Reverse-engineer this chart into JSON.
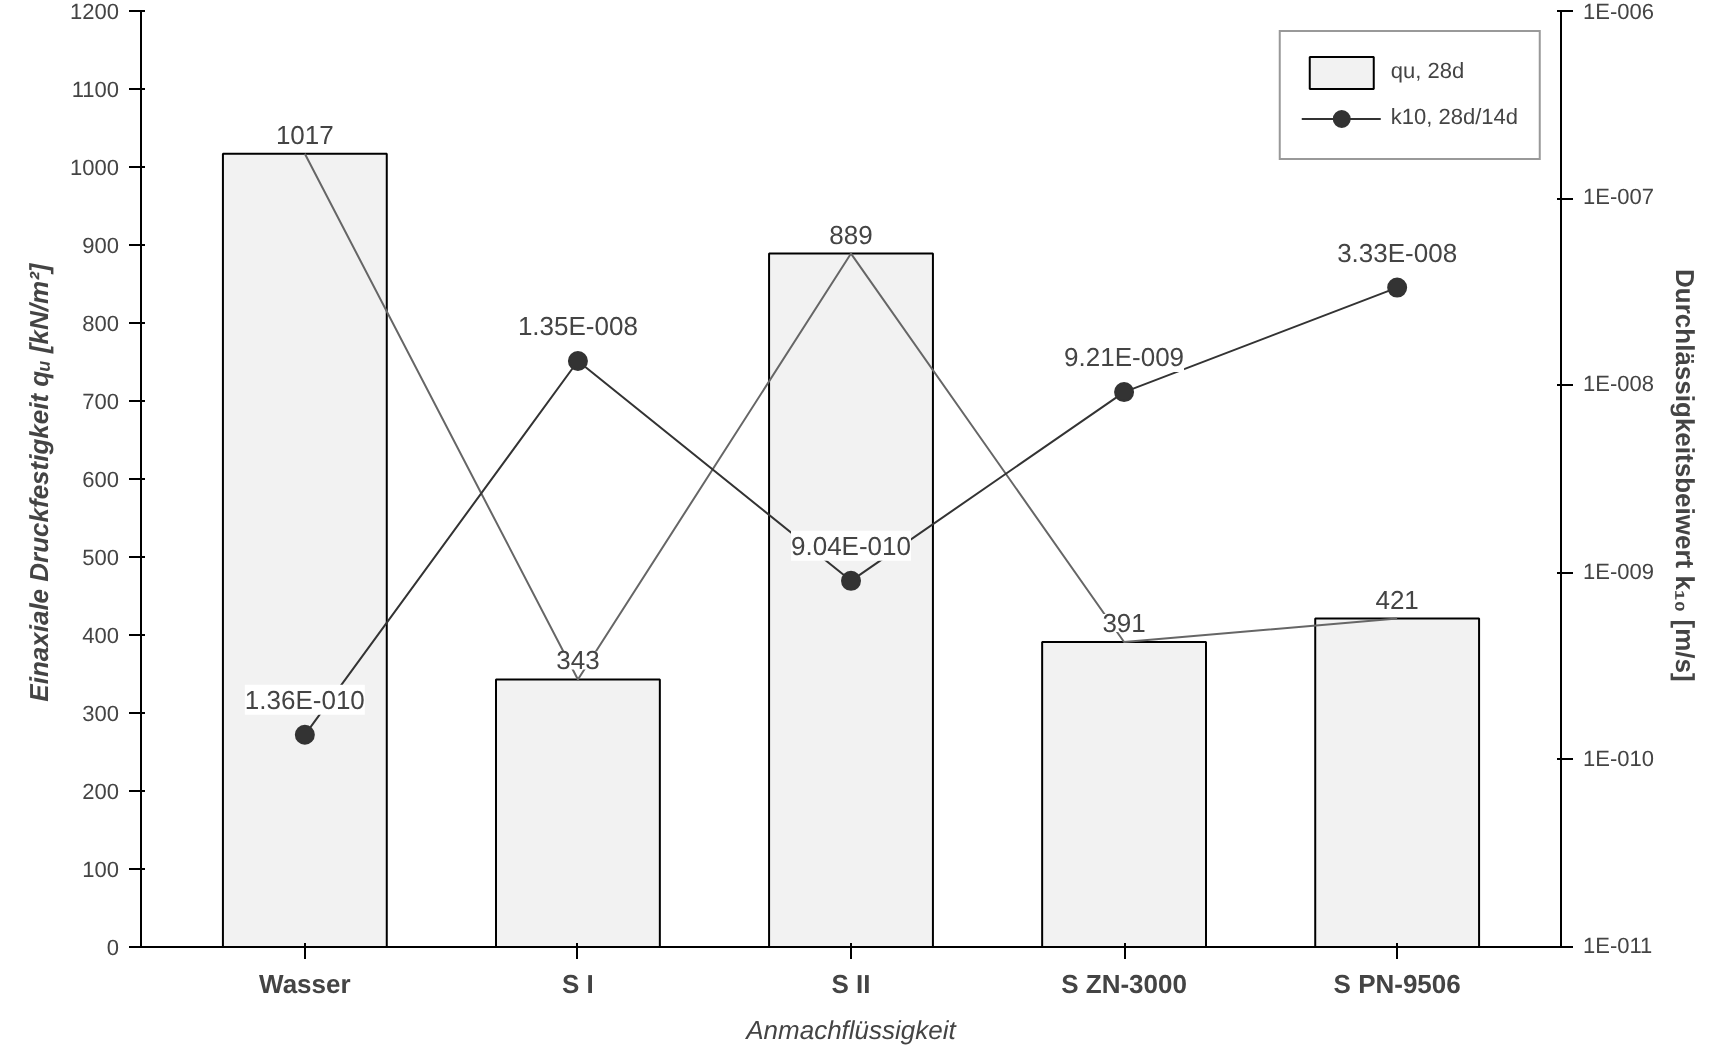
{
  "chart_data": {
    "type": "bar",
    "xlabel": "Anmachflüssigkeit",
    "ylabel": "Einaxiale Druckfestigkeit qᵤ  [kN/m²]",
    "y2label": "Durchlässigkeitsbeiwert k₁₀  [m/s]",
    "categories": [
      "Wasser",
      "S I",
      "S II",
      "S ZN-3000",
      "S PN-9506"
    ],
    "series": [
      {
        "name": "qu, 28d",
        "color": "#f2f2f2",
        "values": [
          1017,
          343,
          889,
          391,
          421
        ],
        "value_labels": [
          "1017",
          "343",
          "889",
          "391",
          "421"
        ]
      },
      {
        "type": "line",
        "color": "#666666",
        "values": [
          1017,
          343,
          889,
          391,
          421
        ],
        "marker": "none"
      },
      {
        "name": "k10, 28d/14d",
        "type": "line",
        "axis": "y2",
        "color": "#333333",
        "marker": "circle",
        "values": [
          1.36e-10,
          1.35e-08,
          9.04e-10,
          9.21e-09,
          3.33e-08
        ],
        "value_labels": [
          "1.36E-010",
          "1.35E-008",
          "9.04E-010",
          "9.21E-009",
          "3.33E-008"
        ]
      }
    ],
    "ylim": [
      0,
      1200
    ],
    "yticks": [
      0,
      100,
      200,
      300,
      400,
      500,
      600,
      700,
      800,
      900,
      1000,
      1100,
      1200
    ],
    "log": "y2",
    "y2lim": [
      1e-11,
      1e-06
    ],
    "y2ticks": [
      {
        "value": 1e-11,
        "label": "1E-011"
      },
      {
        "value": 1e-10,
        "label": "1E-010"
      },
      {
        "value": 1e-09,
        "label": "1E-009"
      },
      {
        "value": 1e-08,
        "label": "1E-008"
      },
      {
        "value": 1e-07,
        "label": "1E-007"
      },
      {
        "value": 1e-06,
        "label": "1E-006"
      }
    ],
    "grid": false,
    "legend": "top right"
  }
}
